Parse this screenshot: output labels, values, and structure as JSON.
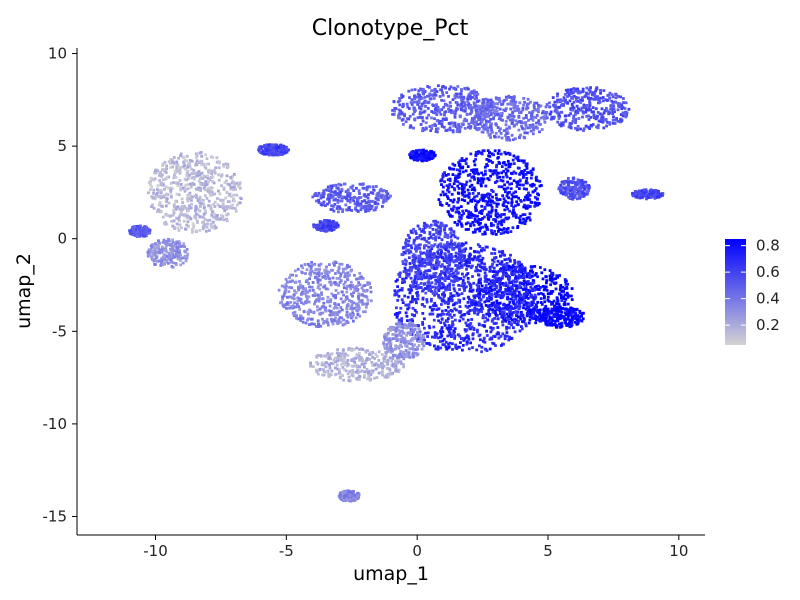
{
  "chart_data": {
    "type": "scatter",
    "title": "Clonotype_Pct",
    "xlabel": "umap_1",
    "ylabel": "umap_2",
    "xlim": [
      -13,
      11
    ],
    "ylim": [
      -16,
      10.3
    ],
    "x_ticks": [
      -10,
      -5,
      0,
      5,
      10
    ],
    "x_tick_labels": [
      "-10",
      "-5",
      "0",
      "5",
      "10"
    ],
    "y_ticks": [
      10,
      5,
      0,
      -5,
      -10,
      -15
    ],
    "y_tick_labels": [
      "10",
      "5",
      "0",
      "-5",
      "-10",
      "-15"
    ],
    "grid": false,
    "legend_position": "right",
    "color_scale": {
      "low_color": "#d3d3d3",
      "high_color": "#0000ff",
      "min": 0.05,
      "max": 0.85,
      "breaks": [
        0.8,
        0.6,
        0.4,
        0.2
      ],
      "break_labels": [
        "0.8",
        "0.6",
        "0.4",
        "0.2"
      ]
    },
    "clusters": [
      {
        "cx": 4.0,
        "cy": -3.0,
        "rx": 2.0,
        "ry": 1.6,
        "value": 0.85
      },
      {
        "cx": 5.5,
        "cy": -4.2,
        "rx": 0.9,
        "ry": 0.6,
        "value": 0.85
      },
      {
        "cx": 2.8,
        "cy": 2.5,
        "rx": 2.0,
        "ry": 2.3,
        "value": 0.8
      },
      {
        "cx": 1.8,
        "cy": -3.2,
        "rx": 2.8,
        "ry": 3.0,
        "value": 0.7
      },
      {
        "cx": 0.6,
        "cy": -1.0,
        "rx": 1.2,
        "ry": 2.0,
        "value": 0.6
      },
      {
        "cx": 1.0,
        "cy": 7.0,
        "rx": 2.0,
        "ry": 1.3,
        "value": 0.5
      },
      {
        "cx": 3.5,
        "cy": 6.5,
        "rx": 1.5,
        "ry": 1.2,
        "value": 0.45
      },
      {
        "cx": 6.5,
        "cy": 7.0,
        "rx": 1.6,
        "ry": 1.2,
        "value": 0.55
      },
      {
        "cx": 6.0,
        "cy": 2.7,
        "rx": 0.6,
        "ry": 0.6,
        "value": 0.55
      },
      {
        "cx": 8.8,
        "cy": 2.4,
        "rx": 0.6,
        "ry": 0.25,
        "value": 0.6
      },
      {
        "cx": 0.2,
        "cy": 4.5,
        "rx": 0.5,
        "ry": 0.3,
        "value": 0.8
      },
      {
        "cx": -2.5,
        "cy": 2.2,
        "rx": 1.5,
        "ry": 0.8,
        "value": 0.5
      },
      {
        "cx": -3.5,
        "cy": 0.7,
        "rx": 0.5,
        "ry": 0.3,
        "value": 0.6
      },
      {
        "cx": -5.5,
        "cy": 4.8,
        "rx": 0.6,
        "ry": 0.3,
        "value": 0.6
      },
      {
        "cx": -8.5,
        "cy": 2.5,
        "rx": 1.8,
        "ry": 2.2,
        "value": 0.15
      },
      {
        "cx": -9.5,
        "cy": -0.8,
        "rx": 0.8,
        "ry": 0.8,
        "value": 0.3
      },
      {
        "cx": -10.6,
        "cy": 0.4,
        "rx": 0.4,
        "ry": 0.3,
        "value": 0.5
      },
      {
        "cx": -3.5,
        "cy": -3.0,
        "rx": 1.8,
        "ry": 1.8,
        "value": 0.35
      },
      {
        "cx": -2.3,
        "cy": -6.8,
        "rx": 1.8,
        "ry": 0.9,
        "value": 0.18
      },
      {
        "cx": -0.5,
        "cy": -5.5,
        "rx": 0.8,
        "ry": 1.0,
        "value": 0.3
      },
      {
        "cx": -2.6,
        "cy": -13.9,
        "rx": 0.4,
        "ry": 0.3,
        "value": 0.35
      }
    ]
  }
}
